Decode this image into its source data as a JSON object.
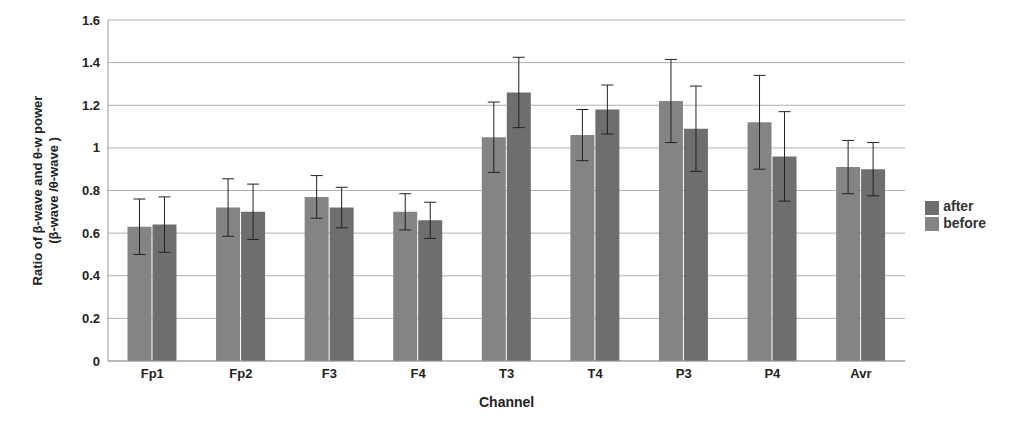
{
  "chart_data": {
    "type": "bar",
    "xlabel": "Channel",
    "ylabel": "Ratio of β-wave and θ-w power\n(β-wave /θ-wave )",
    "categories": [
      "Fp1",
      "Fp2",
      "F3",
      "F4",
      "T3",
      "T4",
      "P3",
      "P4",
      "Avr"
    ],
    "series": [
      {
        "name": "before",
        "color": "#848484",
        "values": [
          0.63,
          0.72,
          0.77,
          0.7,
          1.05,
          1.06,
          1.22,
          1.12,
          0.91
        ],
        "errors": [
          0.13,
          0.135,
          0.1,
          0.085,
          0.165,
          0.12,
          0.195,
          0.22,
          0.125
        ]
      },
      {
        "name": "after",
        "color": "#6e6e6e",
        "values": [
          0.64,
          0.7,
          0.72,
          0.66,
          1.26,
          1.18,
          1.09,
          0.96,
          0.9
        ],
        "errors": [
          0.13,
          0.13,
          0.095,
          0.085,
          0.165,
          0.115,
          0.2,
          0.21,
          0.125
        ]
      }
    ],
    "ylim": [
      0,
      1.6
    ],
    "yticks": [
      0,
      0.2,
      0.4,
      0.6,
      0.8,
      1,
      1.2,
      1.4,
      1.6
    ],
    "grid": true,
    "legend": "right"
  }
}
